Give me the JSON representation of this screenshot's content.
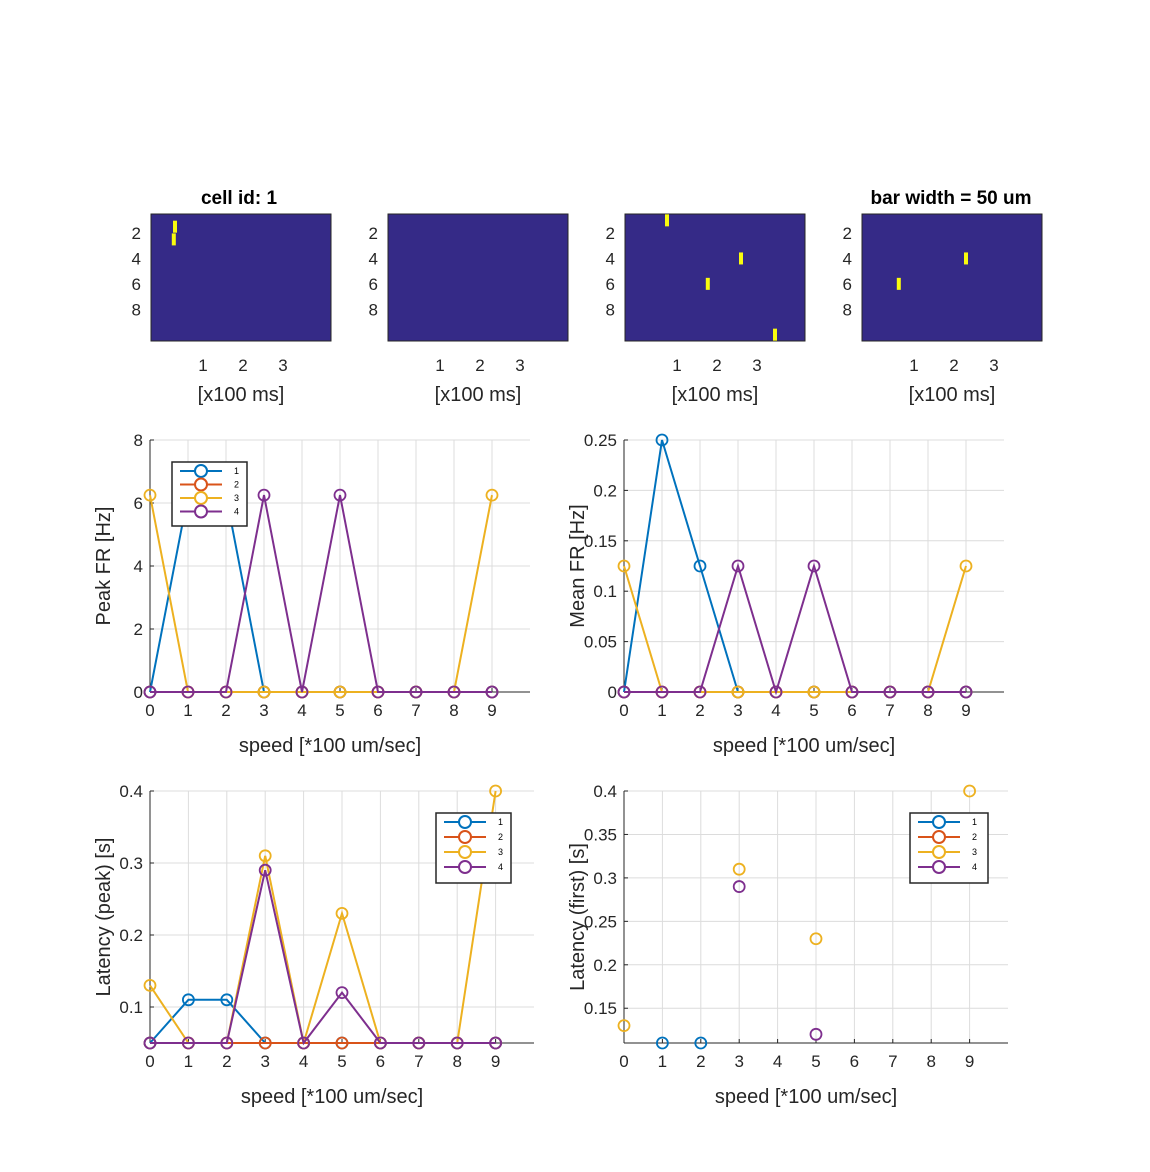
{
  "titles": {
    "left": "cell id: 1",
    "right": "bar width = 50 um"
  },
  "raster": {
    "xlabel": "[x100 ms]",
    "x_ticks": [
      "1",
      "2",
      "3"
    ],
    "y_ticks": [
      "2",
      "4",
      "6",
      "8"
    ],
    "x_range_ms100": [
      -0.3,
      4.2
    ],
    "y_range_rows": [
      0.5,
      10.5
    ],
    "bg_color": "#352A87",
    "spike_color": "#F9FB0E",
    "panels": [
      {
        "name": "1",
        "spikes": [
          {
            "t": 0.3,
            "row": 1.5
          },
          {
            "t": 0.27,
            "row": 2.5
          }
        ]
      },
      {
        "name": "2",
        "spikes": []
      },
      {
        "name": "3",
        "spikes": [
          {
            "t": 0.75,
            "row": 1.0
          },
          {
            "t": 2.6,
            "row": 4.0
          },
          {
            "t": 1.77,
            "row": 6.0
          },
          {
            "t": 3.45,
            "row": 10.0
          }
        ]
      },
      {
        "name": "4",
        "spikes": [
          {
            "t": 2.3,
            "row": 4.0
          },
          {
            "t": 0.62,
            "row": 6.0
          }
        ]
      }
    ]
  },
  "chart_data": [
    {
      "type": "line",
      "ylabel": "Peak FR [Hz]",
      "xlabel": "speed [*100 um/sec]",
      "xlim": [
        0,
        10
      ],
      "ylim": [
        0,
        8
      ],
      "x_ticks": [
        0,
        1,
        2,
        3,
        4,
        5,
        6,
        7,
        8,
        9
      ],
      "y_ticks": [
        0,
        2,
        4,
        6,
        8
      ],
      "grid": true,
      "legend": "top-left",
      "x": [
        0,
        1,
        2,
        3,
        4,
        5,
        6,
        7,
        8,
        9
      ],
      "series": [
        {
          "name": "1",
          "color": "#0072BD",
          "values": [
            0,
            6.25,
            6.25,
            0,
            0,
            0,
            0,
            0,
            0,
            0
          ]
        },
        {
          "name": "2",
          "color": "#D95319",
          "values": [
            0,
            0,
            0,
            0,
            0,
            0,
            0,
            0,
            0,
            0
          ]
        },
        {
          "name": "3",
          "color": "#EDB120",
          "values": [
            6.25,
            0,
            0,
            0,
            0,
            0,
            0,
            0,
            0,
            6.25
          ]
        },
        {
          "name": "4",
          "color": "#7E2F8E",
          "values": [
            0,
            0,
            0,
            6.25,
            0,
            6.25,
            0,
            0,
            0,
            0
          ]
        }
      ]
    },
    {
      "type": "line",
      "ylabel": "Mean FR [Hz]",
      "xlabel": "speed [*100 um/sec]",
      "xlim": [
        0,
        10
      ],
      "ylim": [
        0,
        0.25
      ],
      "x_ticks": [
        0,
        1,
        2,
        3,
        4,
        5,
        6,
        7,
        8,
        9
      ],
      "y_ticks": [
        0,
        0.05,
        0.1,
        0.15,
        0.2,
        0.25
      ],
      "grid": true,
      "legend": "none",
      "x": [
        0,
        1,
        2,
        3,
        4,
        5,
        6,
        7,
        8,
        9
      ],
      "series": [
        {
          "name": "1",
          "color": "#0072BD",
          "values": [
            0,
            0.25,
            0.125,
            0,
            0,
            0,
            0,
            0,
            0,
            0
          ]
        },
        {
          "name": "2",
          "color": "#D95319",
          "values": [
            0,
            0,
            0,
            0,
            0,
            0,
            0,
            0,
            0,
            0
          ]
        },
        {
          "name": "3",
          "color": "#EDB120",
          "values": [
            0.125,
            0,
            0,
            0,
            0,
            0,
            0,
            0,
            0,
            0.125
          ]
        },
        {
          "name": "4",
          "color": "#7E2F8E",
          "values": [
            0,
            0,
            0,
            0.125,
            0,
            0.125,
            0,
            0,
            0,
            0
          ]
        }
      ]
    },
    {
      "type": "line",
      "ylabel": "Latency (peak) [s]",
      "xlabel": "speed [*100 um/sec]",
      "xlim": [
        0,
        10
      ],
      "ylim": [
        0.05,
        0.4
      ],
      "x_ticks": [
        0,
        1,
        2,
        3,
        4,
        5,
        6,
        7,
        8,
        9
      ],
      "y_ticks": [
        0.1,
        0.2,
        0.3,
        0.4
      ],
      "grid": true,
      "legend": "top-right",
      "x": [
        0,
        1,
        2,
        3,
        4,
        5,
        6,
        7,
        8,
        9
      ],
      "series": [
        {
          "name": "1",
          "color": "#0072BD",
          "values": [
            0.05,
            0.11,
            0.11,
            0.05,
            0.05,
            0.05,
            0.05,
            0.05,
            0.05,
            0.05
          ]
        },
        {
          "name": "2",
          "color": "#D95319",
          "values": [
            0.05,
            0.05,
            0.05,
            0.05,
            0.05,
            0.05,
            0.05,
            0.05,
            0.05,
            0.05
          ]
        },
        {
          "name": "3",
          "color": "#EDB120",
          "values": [
            0.13,
            0.05,
            0.05,
            0.31,
            0.05,
            0.23,
            0.05,
            0.05,
            0.05,
            0.4
          ]
        },
        {
          "name": "4",
          "color": "#7E2F8E",
          "values": [
            0.05,
            0.05,
            0.05,
            0.29,
            0.05,
            0.12,
            0.05,
            0.05,
            0.05,
            0.05
          ]
        }
      ]
    },
    {
      "type": "scatter",
      "ylabel": "Latency (first) [s]",
      "xlabel": "speed [*100 um/sec]",
      "xlim": [
        0,
        10
      ],
      "ylim": [
        0.11,
        0.4
      ],
      "x_ticks": [
        0,
        1,
        2,
        3,
        4,
        5,
        6,
        7,
        8,
        9
      ],
      "y_ticks": [
        0.15,
        0.2,
        0.25,
        0.3,
        0.35,
        0.4
      ],
      "grid": true,
      "legend": "top-right",
      "x": [
        0,
        1,
        2,
        3,
        4,
        5,
        6,
        7,
        8,
        9
      ],
      "series": [
        {
          "name": "1",
          "color": "#0072BD",
          "values": [
            null,
            0.11,
            0.11,
            null,
            null,
            null,
            null,
            null,
            null,
            null
          ]
        },
        {
          "name": "2",
          "color": "#D95319",
          "values": [
            null,
            null,
            null,
            null,
            null,
            null,
            null,
            null,
            null,
            null
          ]
        },
        {
          "name": "3",
          "color": "#EDB120",
          "values": [
            0.13,
            null,
            null,
            0.31,
            null,
            0.23,
            null,
            null,
            null,
            0.4
          ]
        },
        {
          "name": "4",
          "color": "#7E2F8E",
          "values": [
            null,
            null,
            null,
            0.29,
            null,
            0.12,
            null,
            null,
            null,
            null
          ]
        }
      ]
    }
  ]
}
